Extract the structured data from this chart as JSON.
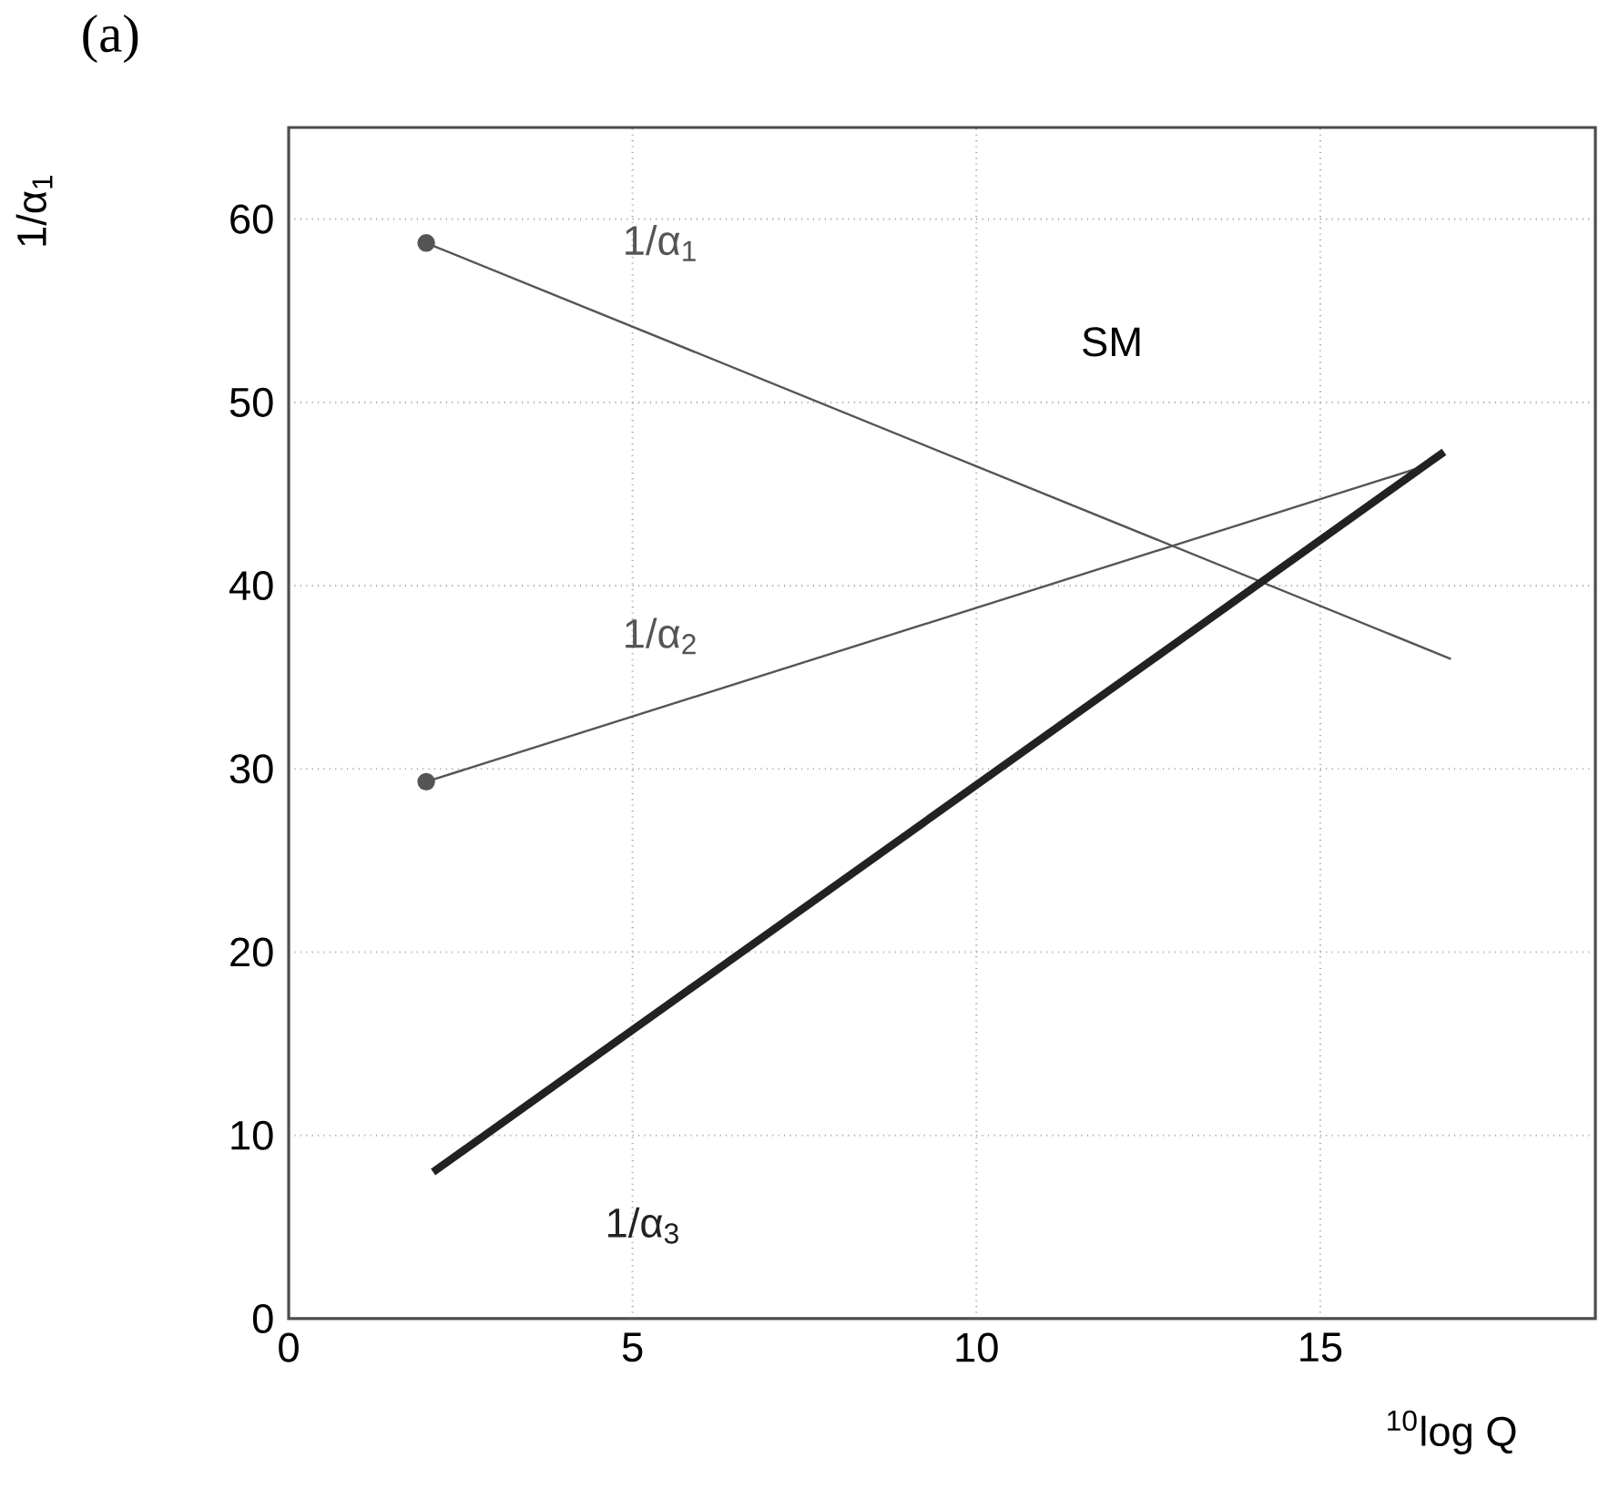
{
  "chart_data": {
    "type": "line",
    "title": "(a)",
    "xlabel": "$^{10}$log Q",
    "ylabel": "1/α$_{1}$",
    "xlim": [
      0,
      19
    ],
    "ylim": [
      0,
      65
    ],
    "xticks": [
      0,
      5,
      10,
      15
    ],
    "yticks": [
      0,
      10,
      20,
      30,
      40,
      50,
      60
    ],
    "grid": true,
    "series": [
      {
        "name": "1/α$_{1}$",
        "color": "#555555",
        "x": [
          2,
          16.9
        ],
        "values": [
          58.7,
          36
        ],
        "marker": "circle"
      },
      {
        "name": "1/α$_{2}$",
        "color": "#555555",
        "x": [
          2,
          16.5
        ],
        "values": [
          29.3,
          46.5
        ],
        "marker": "circle"
      },
      {
        "name": "1/α$_{3}$",
        "color": "#222222",
        "x": [
          2.1,
          16.8
        ],
        "values": [
          8,
          47.3
        ],
        "marker": "none"
      }
    ],
    "annotations": [
      "SM"
    ]
  }
}
